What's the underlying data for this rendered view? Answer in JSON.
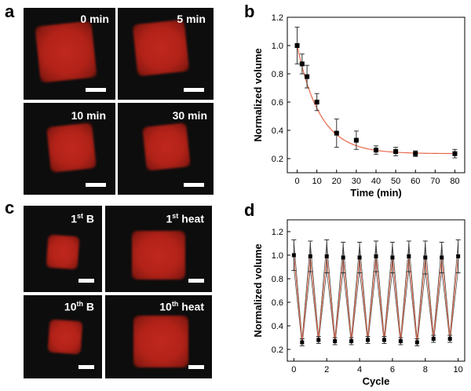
{
  "panel_letters": {
    "a": "a",
    "b": "b",
    "c": "c",
    "d": "d"
  },
  "panel_a": {
    "labels": [
      "0 min",
      "5 min",
      "10 min",
      "30 min"
    ]
  },
  "panel_c": {
    "labels": [
      {
        "num": "1",
        "sup": "st",
        "rest": " B"
      },
      {
        "num": "1",
        "sup": "st",
        "rest": " heat"
      },
      {
        "num": "10",
        "sup": "th",
        "rest": " B"
      },
      {
        "num": "10",
        "sup": "th",
        "rest": " heat"
      }
    ]
  },
  "colors": {
    "fit_line": "#e8684a",
    "marker": "#000000",
    "gel_red": "#b22218"
  },
  "chart_data": [
    {
      "type": "scatter",
      "panel": "b",
      "xlabel": "Time (min)",
      "ylabel": "Normalized volume",
      "xlim": [
        -5,
        85
      ],
      "ylim": [
        0.1,
        1.2
      ],
      "xticks": [
        0,
        10,
        20,
        30,
        40,
        50,
        60,
        70,
        80
      ],
      "yticks": [
        0.2,
        0.4,
        0.6,
        0.8,
        1.0,
        1.2
      ],
      "x": [
        0,
        2.5,
        5,
        10,
        20,
        30,
        40,
        50,
        60,
        80
      ],
      "y": [
        1.0,
        0.87,
        0.78,
        0.6,
        0.38,
        0.33,
        0.26,
        0.25,
        0.235,
        0.235
      ],
      "err": [
        0.13,
        0.07,
        0.08,
        0.06,
        0.1,
        0.065,
        0.03,
        0.03,
        0.02,
        0.03
      ],
      "fit": {
        "type": "exponential_decay",
        "plateau": 0.235,
        "amplitude": 0.765,
        "tau_min": 11.5
      }
    },
    {
      "type": "line",
      "panel": "d",
      "xlabel": "Cycle",
      "ylabel": "Normalized volume",
      "xlim": [
        -0.4,
        10.4
      ],
      "ylim": [
        0.1,
        1.3
      ],
      "xticks": [
        0,
        2,
        4,
        6,
        8,
        10
      ],
      "yticks": [
        0.2,
        0.4,
        0.6,
        0.8,
        1.0,
        1.2
      ],
      "x": [
        0,
        0.5,
        1,
        1.5,
        2,
        2.5,
        3,
        3.5,
        4,
        4.5,
        5,
        5.5,
        6,
        6.5,
        7,
        7.5,
        8,
        8.5,
        9,
        9.5,
        10
      ],
      "y": [
        1.0,
        0.26,
        0.99,
        0.28,
        0.99,
        0.27,
        0.98,
        0.27,
        0.98,
        0.28,
        0.99,
        0.28,
        0.98,
        0.27,
        0.99,
        0.26,
        0.98,
        0.29,
        0.98,
        0.29,
        0.99
      ],
      "err": [
        0.13,
        0.03,
        0.13,
        0.03,
        0.14,
        0.03,
        0.13,
        0.03,
        0.13,
        0.03,
        0.13,
        0.03,
        0.13,
        0.03,
        0.13,
        0.03,
        0.14,
        0.03,
        0.13,
        0.03,
        0.14
      ]
    }
  ]
}
